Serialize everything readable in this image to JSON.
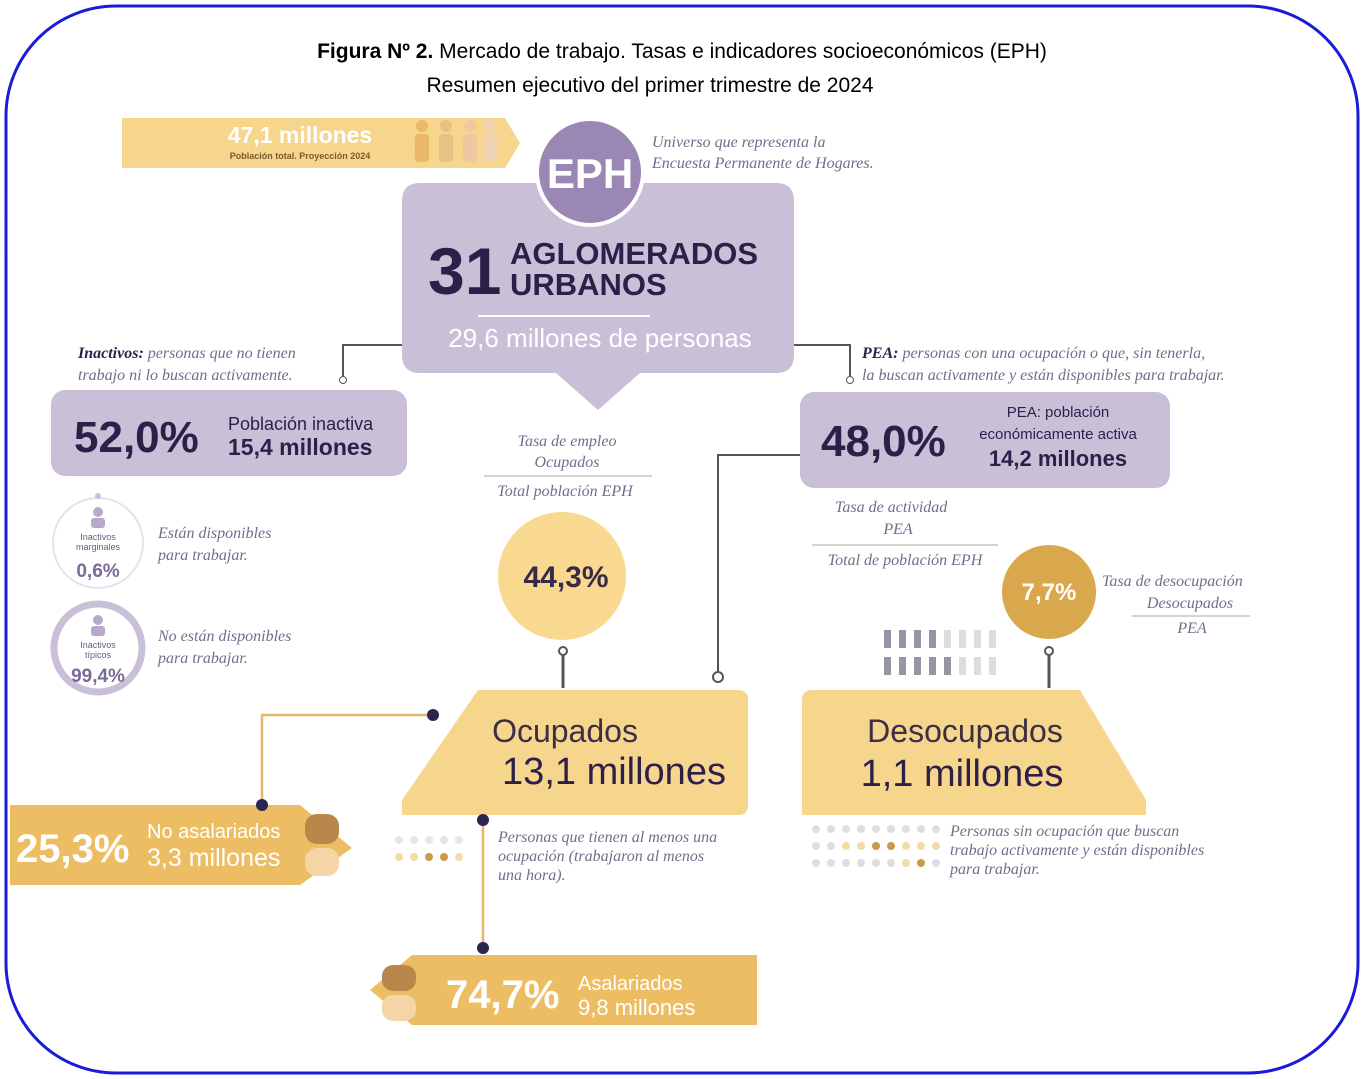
{
  "title": {
    "label": "Figura Nº 2.",
    "text": "Mercado de trabajo. Tasas e indicadores socioeconómicos (EPH)",
    "subtitle": "Resumen ejecutivo del primer trimestre de 2024"
  },
  "population": {
    "value": "47,1 millones",
    "label": "Población total. Proyección 2024"
  },
  "eph": {
    "badge": "EPH",
    "note": [
      "Universo que representa la",
      "Encuesta Permanente de Hogares."
    ],
    "number": "31",
    "label": [
      "AGLOMERADOS",
      "URBANOS"
    ],
    "people": "29,6 millones de personas"
  },
  "inactivos": {
    "term": "Inactivos:",
    "definition": [
      "personas que no tienen",
      "trabajo ni lo buscan activamente."
    ],
    "percent": "52,0%",
    "label": "Población inactiva",
    "count": "15,4 millones"
  },
  "marginales": {
    "label": [
      "Inactivos",
      "marginales"
    ],
    "percent": "0,6%",
    "note": [
      "Están disponibles",
      "para trabajar."
    ]
  },
  "tipicos": {
    "label": [
      "Inactivos",
      "típicos"
    ],
    "percent": "99,4%",
    "note": [
      "No están disponibles",
      "para trabajar."
    ]
  },
  "pea": {
    "term": "PEA:",
    "definition": [
      "personas con una ocupación o que, sin tenerla,",
      "la buscan activamente y están disponibles para trabajar."
    ],
    "percent": "48,0%",
    "label": [
      "PEA: población",
      "económicamente activa"
    ],
    "count": "14,2 millones"
  },
  "tasa_actividad": {
    "name": "Tasa de actividad",
    "numerator": "PEA",
    "denominator": "Total de población EPH"
  },
  "tasa_empleo": {
    "name": "Tasa de empleo",
    "numerator": "Ocupados",
    "denominator": "Total población EPH",
    "value": "44,3%"
  },
  "tasa_desocupacion": {
    "name": "Tasa de desocupación",
    "numerator": "Desocupados",
    "denominator": "PEA",
    "value": "7,7%"
  },
  "ocupados": {
    "label": "Ocupados",
    "count": "13,1 millones",
    "note": [
      "Personas que tienen al menos una",
      "ocupación (trabajaron al menos",
      "una hora)."
    ]
  },
  "desocupados": {
    "label": "Desocupados",
    "count": "1,1 millones",
    "note": [
      "Personas sin ocupación que buscan",
      "trabajo activamente y están disponibles",
      "para trabajar."
    ]
  },
  "no_asalariados": {
    "percent": "25,3%",
    "label": "No asalariados",
    "count": "3,3 millones"
  },
  "asalariados": {
    "percent": "74,7%",
    "label": "Asalariados",
    "count": "9,8 millones"
  }
}
